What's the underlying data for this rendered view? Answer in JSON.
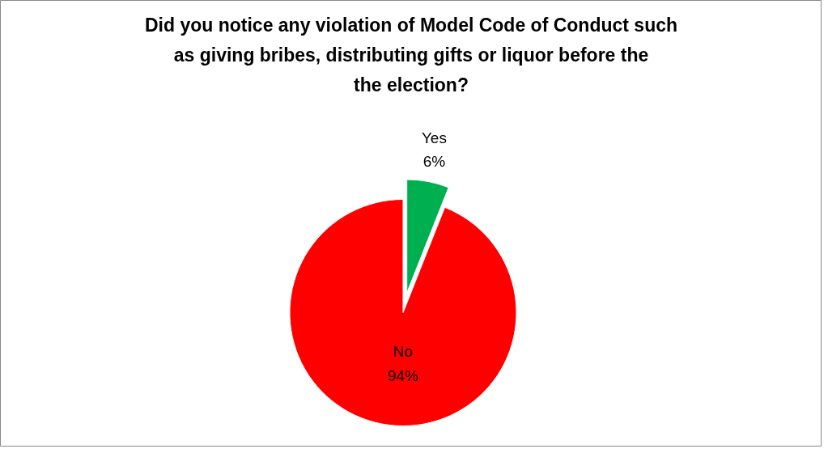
{
  "chart_data": {
    "type": "pie",
    "title": "Did you notice any violation of Model Code of Conduct such as giving bribes, distributing gifts or liquor before the the election?",
    "categories": [
      "Yes",
      "No"
    ],
    "values": [
      6,
      94
    ],
    "colors": [
      "#00b050",
      "#ff0000"
    ],
    "value_labels": [
      "6%",
      "94%"
    ]
  }
}
